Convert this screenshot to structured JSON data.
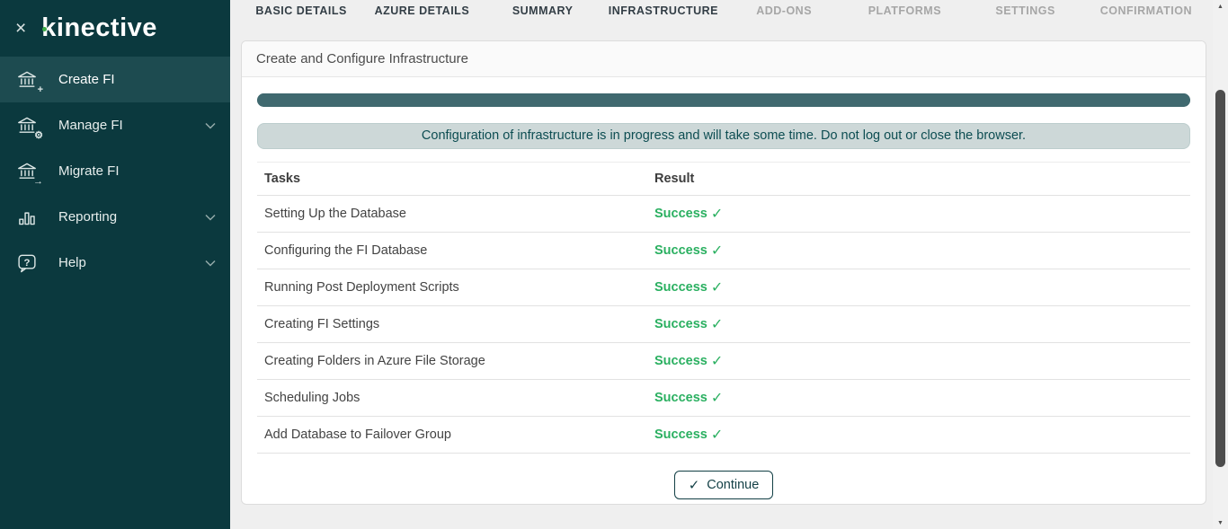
{
  "colors": {
    "sidebar-bg": "#0b393e",
    "sidebar-active-bg": "#1d4b50",
    "brand-teal": "#123f45",
    "progress": "#40696f",
    "notice-bg": "#cdd8d8",
    "notice-text": "#0d4d52",
    "success": "#2bb061",
    "logo-dot": "#3fae49"
  },
  "icons": {
    "close": "×",
    "plus": "+",
    "gear": "⚙",
    "arrow": "→",
    "question": "?",
    "check": "✓",
    "scroll_up": "▲",
    "scroll_down": "▼"
  },
  "sidebar": {
    "logo_text": "kinective",
    "items": [
      {
        "label": "Create FI",
        "active": true,
        "expandable": false
      },
      {
        "label": "Manage FI",
        "active": false,
        "expandable": true
      },
      {
        "label": "Migrate FI",
        "active": false,
        "expandable": false
      },
      {
        "label": "Reporting",
        "active": false,
        "expandable": true
      },
      {
        "label": "Help",
        "active": false,
        "expandable": true
      }
    ]
  },
  "tabs": [
    {
      "label": "BASIC DETAILS",
      "enabled": true
    },
    {
      "label": "AZURE DETAILS",
      "enabled": true
    },
    {
      "label": "SUMMARY",
      "enabled": true
    },
    {
      "label": "INFRASTRUCTURE",
      "enabled": true,
      "current": true
    },
    {
      "label": "ADD-ONS",
      "enabled": false
    },
    {
      "label": "PLATFORMS",
      "enabled": false
    },
    {
      "label": "SETTINGS",
      "enabled": false
    },
    {
      "label": "CONFIRMATION",
      "enabled": false
    }
  ],
  "card": {
    "title": "Create and Configure Infrastructure",
    "progress_percent": 100,
    "notice": "Configuration of infrastructure is in progress and will take some time. Do not log out or close the browser.",
    "table": {
      "headers": [
        "Tasks",
        "Result"
      ],
      "rows": [
        {
          "task": "Setting Up the Database",
          "result": "Success"
        },
        {
          "task": "Configuring the FI Database",
          "result": "Success"
        },
        {
          "task": "Running Post Deployment Scripts",
          "result": "Success"
        },
        {
          "task": "Creating FI Settings",
          "result": "Success"
        },
        {
          "task": "Creating Folders in Azure File Storage",
          "result": "Success"
        },
        {
          "task": "Scheduling Jobs",
          "result": "Success"
        },
        {
          "task": "Add Database to Failover Group",
          "result": "Success"
        }
      ]
    },
    "continue_button": {
      "label": "Continue"
    }
  }
}
